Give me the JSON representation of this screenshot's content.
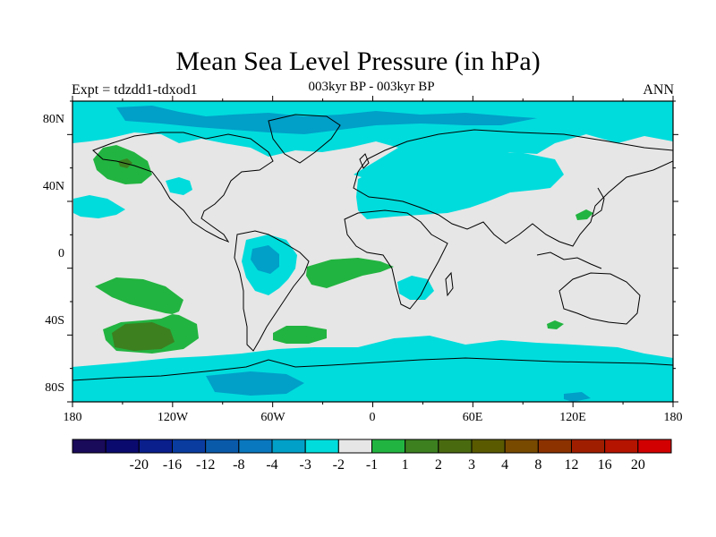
{
  "title": "Mean Sea Level Pressure (in hPa)",
  "experiment": "Expt = tdzdd1-tdxod1",
  "subtitle": "003kyr BP - 003kyr BP",
  "season": "ANN",
  "colors": {
    "background_field": "#e6e6e6",
    "neg_1": "#00dcdc",
    "neg_2": "#00a0c8",
    "pos_1": "#22b440",
    "pos_2": "#3c8020",
    "ocean_frame": "#00dcdc"
  },
  "latitude_labels": [
    "80N",
    "40N",
    "0",
    "40S",
    "80S"
  ],
  "longitude_labels": [
    "180",
    "120W",
    "60W",
    "0",
    "60E",
    "120E",
    "180"
  ],
  "legend": {
    "colors": [
      "#1a0a5a",
      "#0a0a6e",
      "#0a1e8c",
      "#0a3ca0",
      "#0a5aaa",
      "#0a78be",
      "#00a0c8",
      "#00dcdc",
      "#e6e6e6",
      "#22b440",
      "#3c8020",
      "#4a6a10",
      "#5a5a00",
      "#784a00",
      "#8c3200",
      "#a01e00",
      "#b41400",
      "#d20000"
    ],
    "labels": [
      "-20",
      "-16",
      "-12",
      "-8",
      "-4",
      "-3",
      "-2",
      "-1",
      "1",
      "2",
      "3",
      "4",
      "8",
      "12",
      "16",
      "20"
    ]
  }
}
